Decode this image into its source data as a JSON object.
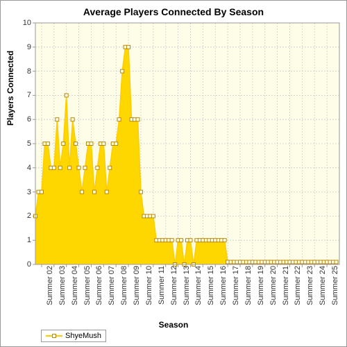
{
  "chart": {
    "type": "area",
    "title": "Average Players Connected By Season",
    "title_fontsize": 14,
    "xlabel": "Season",
    "ylabel": "Players Connected",
    "label_fontsize": 12,
    "tick_fontsize": 11,
    "background_color": "#fefde8",
    "plot_border_color": "#999999",
    "grid_color": "#cccccc",
    "tick_color": "#999999",
    "line_color": "#ffcc00",
    "fill_color": "#ffd700",
    "fill_opacity": 1.0,
    "marker_border_color": "#b8860b",
    "marker_fill_color": "#ffffe0",
    "marker_size": 5,
    "line_width": 1.5,
    "ylim": [
      0,
      10
    ],
    "ytick_step": 1,
    "xlim": [
      0,
      98
    ],
    "series_name": "ShyeMush",
    "x_tick_positions": [
      2,
      6,
      10,
      14,
      18,
      22,
      26,
      30,
      34,
      38,
      42,
      46,
      50,
      54,
      58,
      62,
      66,
      70,
      74,
      78,
      82,
      86,
      90,
      94
    ],
    "x_tick_labels": [
      "Summer 02",
      "Summer 03",
      "Summer 04",
      "Summer 05",
      "Summer 06",
      "Summer 07",
      "Summer 08",
      "Summer 09",
      "Summer 10",
      "Summer 11",
      "Summer 12",
      "Summer 13",
      "Summer 14",
      "Summer 15",
      "Summer 16",
      "Summer 17",
      "Summer 18",
      "Summer 19",
      "Summer 20",
      "Summer 21",
      "Summer 22",
      "Summer 23",
      "Summer 24",
      "Summer 25"
    ],
    "data": [
      {
        "x": 0,
        "y": 2
      },
      {
        "x": 1,
        "y": 3
      },
      {
        "x": 2,
        "y": 3
      },
      {
        "x": 3,
        "y": 5
      },
      {
        "x": 4,
        "y": 5
      },
      {
        "x": 5,
        "y": 4
      },
      {
        "x": 6,
        "y": 4
      },
      {
        "x": 7,
        "y": 6
      },
      {
        "x": 8,
        "y": 4
      },
      {
        "x": 9,
        "y": 5
      },
      {
        "x": 10,
        "y": 7
      },
      {
        "x": 11,
        "y": 4
      },
      {
        "x": 12,
        "y": 6
      },
      {
        "x": 13,
        "y": 5
      },
      {
        "x": 14,
        "y": 4
      },
      {
        "x": 15,
        "y": 3
      },
      {
        "x": 16,
        "y": 4
      },
      {
        "x": 17,
        "y": 5
      },
      {
        "x": 18,
        "y": 5
      },
      {
        "x": 19,
        "y": 3
      },
      {
        "x": 20,
        "y": 4
      },
      {
        "x": 21,
        "y": 5
      },
      {
        "x": 22,
        "y": 5
      },
      {
        "x": 23,
        "y": 3
      },
      {
        "x": 24,
        "y": 4
      },
      {
        "x": 25,
        "y": 5
      },
      {
        "x": 26,
        "y": 5
      },
      {
        "x": 27,
        "y": 6
      },
      {
        "x": 28,
        "y": 8
      },
      {
        "x": 29,
        "y": 9
      },
      {
        "x": 30,
        "y": 9
      },
      {
        "x": 31,
        "y": 6
      },
      {
        "x": 32,
        "y": 6
      },
      {
        "x": 33,
        "y": 6
      },
      {
        "x": 34,
        "y": 3
      },
      {
        "x": 35,
        "y": 2
      },
      {
        "x": 36,
        "y": 2
      },
      {
        "x": 37,
        "y": 2
      },
      {
        "x": 38,
        "y": 2
      },
      {
        "x": 39,
        "y": 1
      },
      {
        "x": 40,
        "y": 1
      },
      {
        "x": 41,
        "y": 1
      },
      {
        "x": 42,
        "y": 1
      },
      {
        "x": 43,
        "y": 1
      },
      {
        "x": 44,
        "y": 1
      },
      {
        "x": 45,
        "y": 0
      },
      {
        "x": 46,
        "y": 1
      },
      {
        "x": 47,
        "y": 1
      },
      {
        "x": 48,
        "y": 0
      },
      {
        "x": 49,
        "y": 1
      },
      {
        "x": 50,
        "y": 1
      },
      {
        "x": 51,
        "y": 0
      },
      {
        "x": 52,
        "y": 1
      },
      {
        "x": 53,
        "y": 1
      },
      {
        "x": 54,
        "y": 1
      },
      {
        "x": 55,
        "y": 1
      },
      {
        "x": 56,
        "y": 1
      },
      {
        "x": 57,
        "y": 1
      },
      {
        "x": 58,
        "y": 1
      },
      {
        "x": 59,
        "y": 1
      },
      {
        "x": 60,
        "y": 1
      },
      {
        "x": 61,
        "y": 1
      },
      {
        "x": 62,
        "y": 0.1
      },
      {
        "x": 63,
        "y": 0.1
      },
      {
        "x": 64,
        "y": 0.1
      },
      {
        "x": 65,
        "y": 0.1
      },
      {
        "x": 66,
        "y": 0.1
      },
      {
        "x": 67,
        "y": 0.1
      },
      {
        "x": 68,
        "y": 0.1
      },
      {
        "x": 69,
        "y": 0.1
      },
      {
        "x": 70,
        "y": 0.1
      },
      {
        "x": 71,
        "y": 0.1
      },
      {
        "x": 72,
        "y": 0.1
      },
      {
        "x": 73,
        "y": 0.1
      },
      {
        "x": 74,
        "y": 0.1
      },
      {
        "x": 75,
        "y": 0.1
      },
      {
        "x": 76,
        "y": 0.1
      },
      {
        "x": 77,
        "y": 0.1
      },
      {
        "x": 78,
        "y": 0.1
      },
      {
        "x": 79,
        "y": 0.1
      },
      {
        "x": 80,
        "y": 0.1
      },
      {
        "x": 81,
        "y": 0.1
      },
      {
        "x": 82,
        "y": 0.1
      },
      {
        "x": 83,
        "y": 0.1
      },
      {
        "x": 84,
        "y": 0.1
      },
      {
        "x": 85,
        "y": 0.1
      },
      {
        "x": 86,
        "y": 0.1
      },
      {
        "x": 87,
        "y": 0.1
      },
      {
        "x": 88,
        "y": 0.1
      },
      {
        "x": 89,
        "y": 0.1
      },
      {
        "x": 90,
        "y": 0.1
      },
      {
        "x": 91,
        "y": 0.1
      },
      {
        "x": 92,
        "y": 0.1
      },
      {
        "x": 93,
        "y": 0.1
      },
      {
        "x": 94,
        "y": 0.1
      },
      {
        "x": 95,
        "y": 0.1
      },
      {
        "x": 96,
        "y": 0.1
      },
      {
        "x": 97,
        "y": 0.1
      }
    ]
  }
}
